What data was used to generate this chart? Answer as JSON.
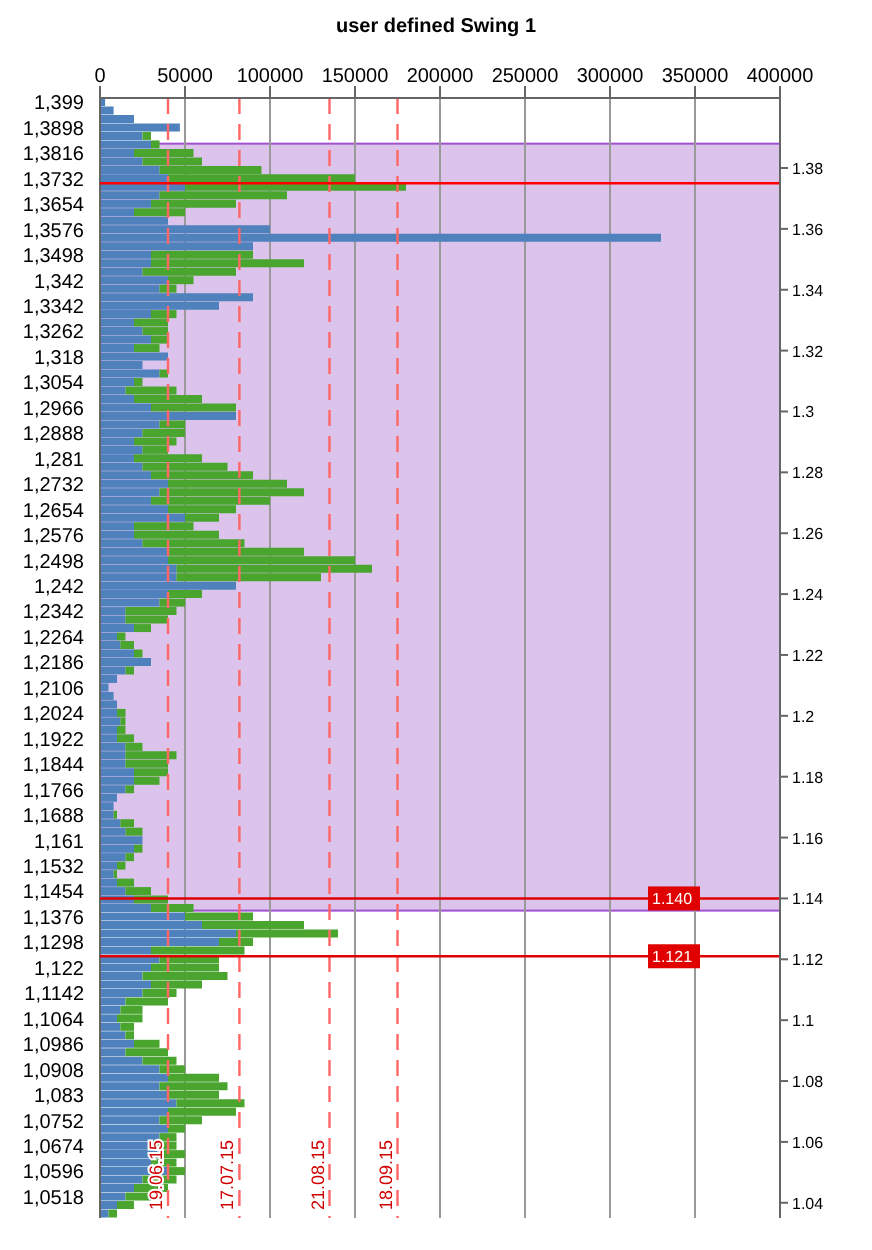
{
  "chart_data": {
    "type": "bar",
    "orientation": "horizontal",
    "stacked": true,
    "title": "user defined Swing 1",
    "categories": [
      "1,399",
      null,
      null,
      "1,3898",
      null,
      null,
      "1,3816",
      null,
      null,
      "1,3732",
      null,
      null,
      "1,3654",
      null,
      null,
      "1,3576",
      null,
      null,
      "1,3498",
      null,
      null,
      "1,342",
      null,
      null,
      "1,3342",
      null,
      null,
      "1,3262",
      null,
      null,
      "1,318",
      null,
      null,
      "1,3054",
      null,
      null,
      "1,2966",
      null,
      null,
      "1,2888",
      null,
      null,
      "1,281",
      null,
      null,
      "1,2732",
      null,
      null,
      "1,2654",
      null,
      null,
      "1,2576",
      null,
      null,
      "1,2498",
      null,
      null,
      "1,242",
      null,
      null,
      "1,2342",
      null,
      null,
      "1,2264",
      null,
      null,
      "1,2186",
      null,
      null,
      "1,2106",
      null,
      null,
      "1,2024",
      null,
      null,
      "1,1922",
      null,
      null,
      "1,1844",
      null,
      null,
      "1,1766",
      null,
      null,
      "1,1688",
      null,
      null,
      "1,161",
      null,
      null,
      "1,1532",
      null,
      null,
      "1,1454",
      null,
      null,
      "1,1376",
      null,
      null,
      "1,1298",
      null,
      null,
      "1,122",
      null,
      null,
      "1,1142",
      null,
      null,
      "1,1064",
      null,
      null,
      "1,0986",
      null,
      null,
      "1,0908",
      null,
      null,
      "1,083",
      null,
      null,
      "1,0752",
      null,
      null,
      "1,0674",
      null,
      null,
      "1,0596",
      null,
      null,
      "1,0518",
      null,
      null
    ],
    "series": [
      {
        "color": "#4f81bd",
        "values": [
          3000,
          8000,
          20000,
          47000,
          25000,
          30000,
          20000,
          25000,
          35000,
          40000,
          50000,
          35000,
          30000,
          20000,
          40000,
          100000,
          330000,
          90000,
          30000,
          30000,
          25000,
          40000,
          35000,
          90000,
          70000,
          30000,
          20000,
          25000,
          30000,
          20000,
          40000,
          25000,
          35000,
          20000,
          15000,
          20000,
          30000,
          80000,
          35000,
          25000,
          20000,
          25000,
          20000,
          25000,
          30000,
          40000,
          35000,
          30000,
          40000,
          50000,
          20000,
          20000,
          25000,
          40000,
          40000,
          45000,
          45000,
          80000,
          40000,
          35000,
          15000,
          15000,
          20000,
          10000,
          12000,
          20000,
          30000,
          15000,
          10000,
          5000,
          8000,
          10000,
          10000,
          12000,
          10000,
          10000,
          15000,
          15000,
          15000,
          20000,
          20000,
          15000,
          10000,
          8000,
          8000,
          12000,
          15000,
          25000,
          20000,
          15000,
          10000,
          8000,
          10000,
          15000,
          20000,
          30000,
          50000,
          60000,
          80000,
          70000,
          30000,
          35000,
          30000,
          25000,
          30000,
          25000,
          15000,
          12000,
          10000,
          12000,
          15000,
          20000,
          15000,
          25000,
          35000,
          40000,
          35000,
          40000,
          45000,
          40000,
          35000,
          40000,
          35000,
          30000,
          35000,
          30000,
          40000,
          25000,
          20000,
          15000,
          10000,
          5000
        ]
      },
      {
        "color": "#4aa52e",
        "values": [
          0,
          0,
          0,
          0,
          5000,
          5000,
          35000,
          35000,
          60000,
          110000,
          130000,
          75000,
          50000,
          30000,
          0,
          0,
          0,
          0,
          60000,
          90000,
          55000,
          15000,
          10000,
          0,
          0,
          15000,
          20000,
          15000,
          10000,
          15000,
          0,
          0,
          5000,
          5000,
          30000,
          40000,
          50000,
          0,
          15000,
          25000,
          25000,
          15000,
          40000,
          50000,
          60000,
          70000,
          85000,
          70000,
          40000,
          20000,
          35000,
          50000,
          60000,
          80000,
          110000,
          115000,
          85000,
          0,
          20000,
          15000,
          30000,
          25000,
          10000,
          5000,
          8000,
          5000,
          0,
          5000,
          0,
          0,
          0,
          0,
          5000,
          3000,
          5000,
          10000,
          10000,
          30000,
          25000,
          20000,
          15000,
          5000,
          0,
          0,
          2000,
          8000,
          10000,
          0,
          5000,
          5000,
          5000,
          2000,
          10000,
          15000,
          20000,
          25000,
          40000,
          60000,
          60000,
          20000,
          55000,
          35000,
          40000,
          50000,
          30000,
          20000,
          25000,
          13000,
          15000,
          8000,
          5000,
          15000,
          25000,
          20000,
          15000,
          30000,
          40000,
          30000,
          40000,
          40000,
          25000,
          10000,
          10000,
          15000,
          15000,
          15000,
          10000,
          20000,
          20000,
          15000,
          10000,
          5000
        ]
      }
    ],
    "xlim": [
      0,
      400000
    ],
    "xticks": [
      0,
      50000,
      100000,
      150000,
      200000,
      250000,
      300000,
      350000,
      400000
    ],
    "y2lim": [
      1.035,
      1.403
    ],
    "y2ticks": [
      1.04,
      1.06,
      1.08,
      1.1,
      1.12,
      1.14,
      1.16,
      1.18,
      1.2,
      1.22,
      1.24,
      1.26,
      1.28,
      1.3,
      1.32,
      1.34,
      1.36,
      1.38
    ],
    "grid": "x",
    "legend": false,
    "bands": [
      {
        "axis": "y2",
        "from": 1.136,
        "to": 1.388,
        "color": "#dcc3ec"
      }
    ],
    "ref_lines": [
      {
        "axis": "y2",
        "value": 1.375,
        "color": "#ff0000"
      },
      {
        "axis": "y2",
        "value": 1.14,
        "label": "1.140",
        "color": "#e00000"
      },
      {
        "axis": "y2",
        "value": 1.121,
        "label": "1.121",
        "color": "#e00000"
      },
      {
        "axis": "x",
        "value": 40000,
        "label": "19.06.15",
        "color": "#ff6666",
        "line_style": "dashed"
      },
      {
        "axis": "x",
        "value": 82000,
        "label": "17.07.15",
        "color": "#ff6666",
        "line_style": "dashed"
      },
      {
        "axis": "x",
        "value": 135000,
        "label": "21.08.15",
        "color": "#ff6666",
        "line_style": "dashed"
      },
      {
        "axis": "x",
        "value": 175000,
        "label": "18.09.15",
        "color": "#ff6666",
        "line_style": "dashed"
      }
    ]
  }
}
